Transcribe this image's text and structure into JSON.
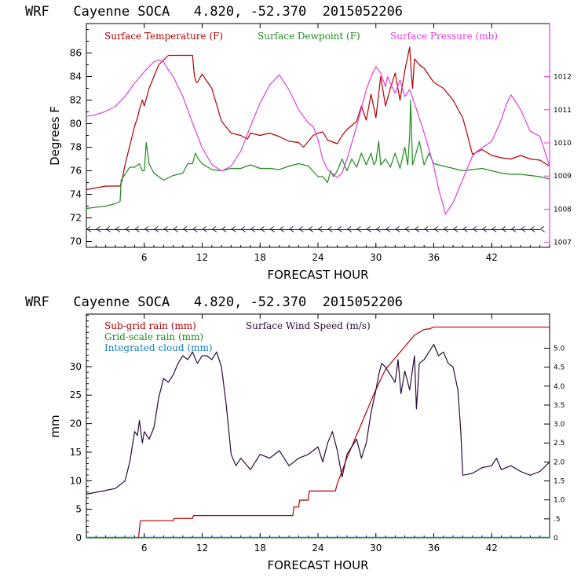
{
  "colors": {
    "temp": "#b00000",
    "dew": "#1e8c1e",
    "press": "#e23ce2",
    "subrain": "#b00000",
    "gridrain": "#1e8c1e",
    "cloud": "#1a7fc4",
    "wind": "#2a0a3a",
    "wind_barb": "#2a0a3a"
  },
  "chart_data": [
    {
      "type": "line",
      "title": "WRF   Cayenne SOCA   4.820, -52.370  2015052206",
      "xlabel": "FORECAST HOUR",
      "ylabel": "Degrees F",
      "xlim": [
        0,
        48
      ],
      "ylim": [
        69.5,
        88.5
      ],
      "y2lim": [
        1006.85,
        1013.6
      ],
      "xticks": [
        6,
        12,
        18,
        24,
        30,
        36,
        42
      ],
      "yticks": [
        70,
        72,
        74,
        76,
        78,
        80,
        82,
        84,
        86
      ],
      "y2ticks": [
        1007,
        1008,
        1009,
        1010,
        1011,
        1012
      ],
      "series": [
        {
          "name": "Surface Temperature (F)",
          "axis": "left",
          "x": [
            0,
            2,
            3.5,
            3.7,
            4,
            5,
            5.3,
            5.5,
            5.8,
            6,
            6.5,
            7.5,
            8.5,
            10,
            11,
            11.2,
            11.4,
            11.5,
            11.7,
            12,
            13,
            14,
            15,
            16,
            16.7,
            17,
            18,
            19,
            20,
            21,
            22,
            22.5,
            23,
            23.5,
            24,
            24.5,
            25,
            26,
            26.5,
            27,
            28,
            28.5,
            29,
            29.5,
            30,
            30.5,
            31,
            31.5,
            32,
            32.5,
            33,
            33.5,
            33.7,
            33.8,
            34,
            34.5,
            35,
            36,
            37,
            38,
            39,
            39.5,
            40,
            41,
            42,
            43,
            44,
            45,
            46,
            47,
            48
          ],
          "values": [
            74.4,
            74.7,
            74.7,
            75.2,
            76.5,
            79.8,
            80.5,
            81.2,
            82,
            81.5,
            83,
            85,
            85.8,
            85.8,
            85.8,
            84,
            83.5,
            83.5,
            83.8,
            84.2,
            83,
            80.2,
            79.2,
            79,
            78.7,
            79.2,
            79,
            79.2,
            78.9,
            78.5,
            78.4,
            78,
            78.5,
            79,
            79.2,
            79.3,
            78.6,
            78.3,
            79,
            79.5,
            80.2,
            81.5,
            80.3,
            82.5,
            80.5,
            84,
            81.5,
            83,
            84.3,
            82,
            84.5,
            86.5,
            84,
            83,
            85.5,
            85,
            84.7,
            83.5,
            83,
            82,
            80.5,
            79,
            77.4,
            77.8,
            77.3,
            77.1,
            77,
            77.3,
            77,
            76.9,
            76.4
          ]
        },
        {
          "name": "Surface Dewpoint (F)",
          "axis": "left",
          "x": [
            0,
            2,
            3,
            3.5,
            3.6,
            4,
            4.5,
            5,
            5.5,
            5.8,
            6,
            6.2,
            6.5,
            7,
            8,
            9,
            10,
            10.5,
            11,
            11.3,
            11.6,
            12,
            13,
            14,
            15,
            16,
            17,
            18,
            19,
            20,
            21,
            22,
            23,
            24,
            24.5,
            25,
            25.3,
            25.6,
            26,
            26.5,
            27,
            27.5,
            28,
            28.5,
            29,
            29.5,
            29.8,
            30,
            30.3,
            30.5,
            31,
            31.5,
            32,
            32.5,
            33,
            33.3,
            33.5,
            33.6,
            33.8,
            34,
            34.5,
            35,
            35.5,
            36,
            37,
            38,
            39,
            40,
            41,
            42,
            43,
            44,
            45,
            46,
            47,
            48
          ],
          "values": [
            72.8,
            73,
            73.2,
            73.4,
            75.2,
            75.7,
            76.3,
            76.3,
            76.6,
            76,
            76,
            78.4,
            76.6,
            75.8,
            75.2,
            75.6,
            75.8,
            76.6,
            76.6,
            77.5,
            77,
            76.6,
            76.1,
            76,
            76.2,
            76.2,
            76.5,
            76.2,
            76.2,
            76.1,
            76.4,
            76.6,
            76.4,
            75.5,
            75.5,
            75,
            76,
            75.5,
            76,
            77,
            76,
            77,
            76.3,
            77.5,
            76.5,
            77.5,
            76.5,
            76.8,
            78.5,
            76.5,
            77,
            76.3,
            77.5,
            76.2,
            78,
            76.5,
            79,
            82,
            76.5,
            77,
            78.5,
            76.5,
            77.5,
            76.6,
            76.4,
            76.2,
            76,
            76.1,
            76.2,
            76,
            75.8,
            75.7,
            75.7,
            75.6,
            75.5,
            75.3
          ]
        },
        {
          "name": "Surface Pressure (mb)",
          "axis": "right",
          "x": [
            0,
            1,
            2,
            3,
            4,
            5,
            6,
            6.5,
            7,
            7.5,
            8,
            8.5,
            9,
            10,
            11,
            12,
            13,
            14,
            15,
            16,
            17,
            18,
            19,
            20,
            21,
            22,
            23,
            23.5,
            24,
            24.5,
            25,
            26,
            26.5,
            27,
            28,
            29,
            29.5,
            30,
            30.5,
            31,
            31.2,
            31.5,
            32,
            32.5,
            33,
            33.5,
            34,
            35,
            36,
            36.5,
            37,
            37.2,
            38,
            39,
            40,
            40.5,
            41,
            42,
            43,
            43.5,
            44,
            45,
            46,
            47,
            48
          ],
          "values": [
            1010.8,
            1010.85,
            1010.95,
            1011.1,
            1011.4,
            1011.8,
            1012.15,
            1012.3,
            1012.45,
            1012.5,
            1012.45,
            1012.2,
            1012.0,
            1011.4,
            1010.6,
            1009.85,
            1009.35,
            1009.15,
            1009.3,
            1009.75,
            1010.5,
            1011.2,
            1011.75,
            1012.05,
            1011.6,
            1011.0,
            1010.6,
            1010.5,
            1010.1,
            1009.5,
            1009.2,
            1008.95,
            1009.1,
            1009.5,
            1010.5,
            1011.6,
            1012.0,
            1012.3,
            1012.1,
            1011.7,
            1012.0,
            1011.8,
            1011.5,
            1011.9,
            1011.4,
            1011.6,
            1011.2,
            1010.3,
            1009.3,
            1008.6,
            1008.1,
            1007.85,
            1008.2,
            1008.9,
            1009.6,
            1009.75,
            1009.85,
            1010.05,
            1010.7,
            1011.15,
            1011.45,
            1011.0,
            1010.35,
            1010.2,
            1009.3
          ]
        },
        {
          "name": "Wind barbs",
          "axis": "left",
          "role": "barb",
          "x": [
            0,
            1,
            2,
            3,
            4,
            5,
            6,
            7,
            8,
            9,
            10,
            11,
            12,
            13,
            14,
            15,
            16,
            17,
            18,
            19,
            20,
            21,
            22,
            23,
            24,
            25,
            26,
            27,
            28,
            29,
            30,
            31,
            32,
            33,
            34,
            35,
            36,
            37,
            38,
            39,
            40,
            41,
            42,
            43,
            44,
            45,
            46,
            47
          ],
          "values": [
            71,
            71,
            71,
            71,
            71,
            71,
            71,
            71,
            71,
            71,
            71,
            71,
            71,
            71,
            71,
            71,
            71,
            71,
            71,
            71,
            71,
            71,
            71,
            71,
            71,
            71,
            71,
            71,
            71,
            71,
            71,
            71,
            71,
            71,
            71,
            71,
            71,
            71,
            71,
            71,
            71,
            71,
            71,
            71,
            71,
            71,
            71,
            71
          ]
        }
      ]
    },
    {
      "type": "line",
      "title": "WRF   Cayenne SOCA   4.820, -52.370  2015052206",
      "xlabel": "FORECAST HOUR",
      "ylabel": "mm",
      "xlim": [
        0,
        48
      ],
      "ylim": [
        0,
        39.2
      ],
      "y2lim": [
        0,
        5.9
      ],
      "xticks": [
        6,
        12,
        18,
        24,
        30,
        36,
        42
      ],
      "yticks": [
        0,
        5,
        10,
        15,
        20,
        25,
        30
      ],
      "y2ticks": [
        0,
        0.5,
        1.0,
        1.5,
        2.0,
        2.5,
        3.0,
        3.5,
        4.0,
        4.5,
        5.0
      ],
      "y2ticklabels": [
        "0",
        ".5",
        "1.0",
        "1.5",
        "2.0",
        "2.5",
        "3.0",
        "3.5",
        "4.0",
        "4.5",
        "5.0"
      ],
      "series": [
        {
          "name": "Sub-grid rain (mm)",
          "axis": "left",
          "x": [
            0,
            5.4,
            5.6,
            9,
            9.1,
            11,
            11.1,
            21.4,
            21.5,
            22,
            22.1,
            23,
            23.1,
            25.8,
            26,
            27,
            28,
            29,
            30,
            31,
            32,
            33,
            34,
            35,
            35.5,
            36,
            37,
            48
          ],
          "values": [
            0,
            0,
            3,
            3,
            3.4,
            3.4,
            3.9,
            3.9,
            5.4,
            5.4,
            6.6,
            6.6,
            8.2,
            8.2,
            9.5,
            14,
            18,
            22,
            26,
            29.5,
            31.5,
            33.5,
            35.5,
            36.5,
            36.6,
            36.9,
            36.9,
            36.9
          ]
        },
        {
          "name": "Grid-scale rain (mm)",
          "axis": "left",
          "x": [
            0,
            48
          ],
          "values": [
            0,
            0
          ]
        },
        {
          "name": "Integrated cloud (mm)",
          "axis": "left",
          "x": [
            0,
            48
          ],
          "values": [
            0.1,
            0.1
          ]
        },
        {
          "name": "Surface Wind Speed (m/s)",
          "axis": "right",
          "x": [
            0,
            1,
            2,
            3,
            4,
            4.5,
            5,
            5.3,
            5.5,
            5.8,
            6,
            6.5,
            7,
            7.5,
            8,
            8.5,
            9,
            9.5,
            10,
            10.5,
            11,
            11.5,
            12,
            12.5,
            13,
            13.5,
            14,
            14.5,
            15,
            15.5,
            16,
            17,
            18,
            19,
            20,
            21,
            22,
            23,
            24,
            24.5,
            25,
            25.5,
            26,
            26.5,
            27,
            27.5,
            28,
            28.5,
            29,
            29.5,
            30,
            30.3,
            30.6,
            31,
            31.5,
            32,
            32.3,
            32.6,
            33,
            33.5,
            34,
            34.2,
            34.5,
            35,
            35.5,
            36,
            36.5,
            37,
            37.5,
            38,
            38.5,
            38.8,
            39,
            40,
            41,
            42,
            42.5,
            43,
            44,
            45,
            46,
            47,
            48
          ],
          "values": [
            1.15,
            1.2,
            1.25,
            1.3,
            1.5,
            2.0,
            2.8,
            2.7,
            3.1,
            2.5,
            2.8,
            2.6,
            2.9,
            3.7,
            4.2,
            4.1,
            4.3,
            4.6,
            4.8,
            4.7,
            4.9,
            4.6,
            4.8,
            4.8,
            4.7,
            4.9,
            4.5,
            3.5,
            2.2,
            1.9,
            2.1,
            1.8,
            2.2,
            2.1,
            2.3,
            1.9,
            2.1,
            2.2,
            2.4,
            2.0,
            2.5,
            2.8,
            2.3,
            1.6,
            2.2,
            2.4,
            2.6,
            2.1,
            2.5,
            3.3,
            3.9,
            4.3,
            4.6,
            4.5,
            4.3,
            4.1,
            4.7,
            3.8,
            4.4,
            3.9,
            4.8,
            3.4,
            4.6,
            4.7,
            4.9,
            5.1,
            4.8,
            4.9,
            4.6,
            4.5,
            3.9,
            2.8,
            1.65,
            1.7,
            1.85,
            1.9,
            2.1,
            1.8,
            1.9,
            1.75,
            1.65,
            1.75,
            2.0
          ]
        }
      ]
    }
  ],
  "legend": {
    "top": [
      {
        "label": "Surface Temperature (F)",
        "color_key": "temp"
      },
      {
        "label": "Surface Dewpoint (F)",
        "color_key": "dew"
      },
      {
        "label": "Surface Pressure (mb)",
        "color_key": "press"
      }
    ],
    "bottom": [
      {
        "label": "Sub-grid rain (mm)",
        "color_key": "subrain"
      },
      {
        "label": "Surface Wind Speed (m/s)",
        "color_key": "wind"
      },
      {
        "label": "Grid-scale rain (mm)",
        "color_key": "gridrain"
      },
      {
        "label": "Integrated cloud (mm)",
        "color_key": "cloud"
      }
    ]
  }
}
